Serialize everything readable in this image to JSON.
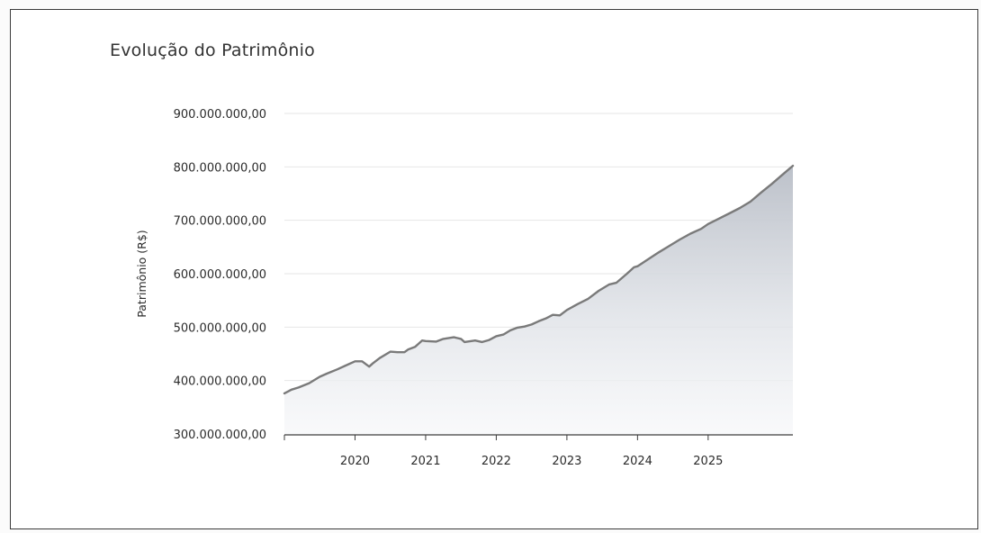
{
  "title": "Evolução do Patrimônio",
  "chart_data": {
    "type": "area",
    "title": "Evolução do Patrimônio",
    "xlabel": "",
    "ylabel": "Patrimônio (R$)",
    "ylim": [
      300000000,
      900000000
    ],
    "yticks": [
      300000000,
      400000000,
      500000000,
      600000000,
      700000000,
      800000000,
      900000000
    ],
    "ytick_labels": [
      "300.000.000,00",
      "400.000.000,00",
      "500.000.000,00",
      "600.000.000,00",
      "700.000.000,00",
      "800.000.000,00",
      "900.000.000,00"
    ],
    "xlim": [
      2019.0,
      2026.2
    ],
    "xticks": [
      2020,
      2021,
      2022,
      2023,
      2024,
      2025
    ],
    "xtick_labels": [
      "2020",
      "2021",
      "2022",
      "2023",
      "2024",
      "2025"
    ],
    "grid": true,
    "line_color": "#7a7a7a",
    "fill_color": "#c4c8cf",
    "x": [
      2019.0,
      2019.1,
      2019.2,
      2019.35,
      2019.5,
      2019.6,
      2019.75,
      2019.85,
      2020.0,
      2020.1,
      2020.2,
      2020.25,
      2020.35,
      2020.5,
      2020.6,
      2020.7,
      2020.75,
      2020.85,
      2020.95,
      2021.0,
      2021.15,
      2021.25,
      2021.4,
      2021.5,
      2021.55,
      2021.7,
      2021.8,
      2021.9,
      2022.0,
      2022.1,
      2022.2,
      2022.3,
      2022.4,
      2022.5,
      2022.6,
      2022.7,
      2022.8,
      2022.9,
      2023.0,
      2023.15,
      2023.3,
      2023.45,
      2023.6,
      2023.7,
      2023.85,
      2023.95,
      2024.0,
      2024.15,
      2024.3,
      2024.45,
      2024.6,
      2024.75,
      2024.9,
      2025.0,
      2025.15,
      2025.3,
      2025.45,
      2025.6,
      2025.75,
      2025.9,
      2026.05,
      2026.2
    ],
    "values": [
      376000000,
      383000000,
      387000000,
      395000000,
      407000000,
      413000000,
      421000000,
      427000000,
      436000000,
      436000000,
      426000000,
      432000000,
      442000000,
      454000000,
      453000000,
      453000000,
      458000000,
      463000000,
      475000000,
      474000000,
      473000000,
      478000000,
      481000000,
      478000000,
      472000000,
      475000000,
      472000000,
      476000000,
      483000000,
      486000000,
      494000000,
      499000000,
      501000000,
      505000000,
      511000000,
      516000000,
      523000000,
      522000000,
      532000000,
      543000000,
      553000000,
      568000000,
      580000000,
      583000000,
      600000000,
      612000000,
      614000000,
      627000000,
      640000000,
      652000000,
      664000000,
      675000000,
      684000000,
      693000000,
      703000000,
      713000000,
      723000000,
      735000000,
      752000000,
      768000000,
      785000000,
      802000000
    ]
  }
}
